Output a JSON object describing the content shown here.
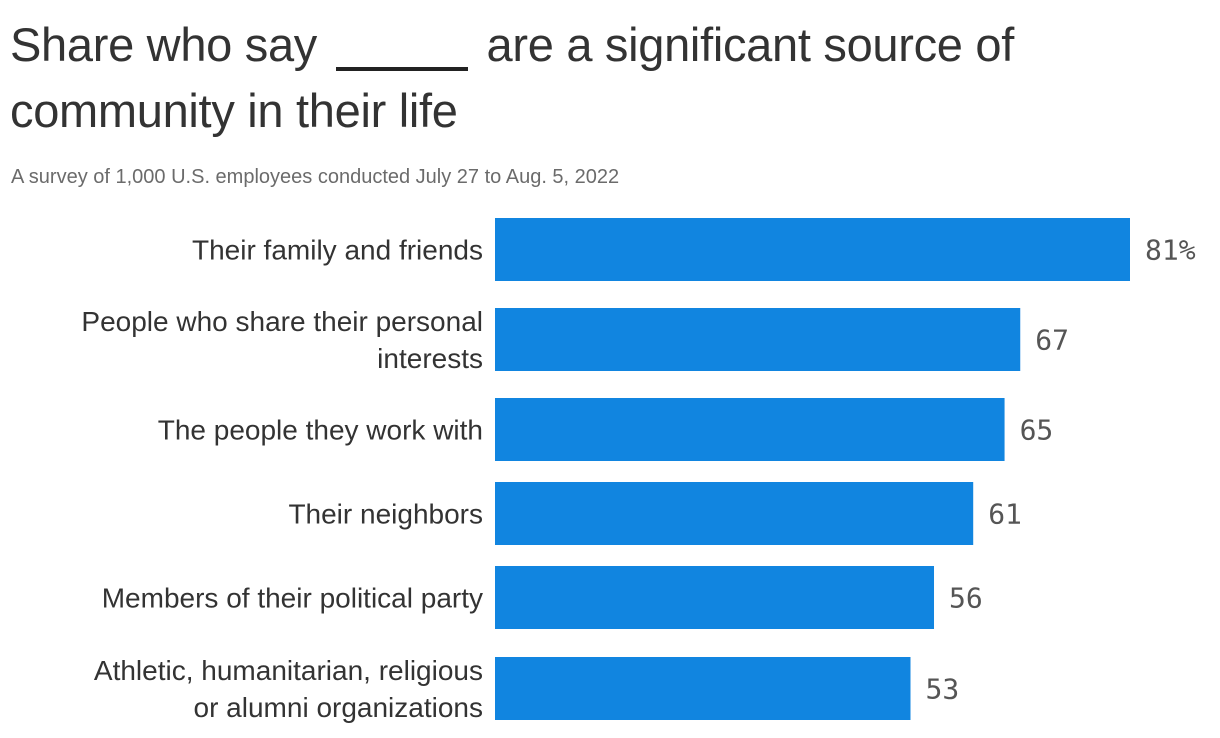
{
  "title": {
    "before": "Share who say",
    "after": "are a significant source of community in their life"
  },
  "subtitle": "A survey of 1,000 U.S. employees conducted July 27 to Aug. 5, 2022",
  "chart_data": {
    "type": "bar",
    "orientation": "horizontal",
    "title": "Share who say _____ are a significant source of community in their life",
    "subtitle": "A survey of 1,000 U.S. employees conducted July 27 to Aug. 5, 2022",
    "categories": [
      "Their family and friends",
      "People who share their personal interests",
      "The people they work with",
      "Their neighbors",
      "Members of their political party",
      "Athletic, humanitarian, religious or alumni organizations"
    ],
    "category_lines": [
      [
        "Their family and friends"
      ],
      [
        "People who share their personal",
        "interests"
      ],
      [
        "The people they work with"
      ],
      [
        "Their neighbors"
      ],
      [
        "Members of their political party"
      ],
      [
        "Athletic, humanitarian, religious",
        "or alumni organizations"
      ]
    ],
    "values": [
      81,
      67,
      65,
      61,
      56,
      53
    ],
    "value_labels": [
      "81%",
      "67",
      "65",
      "61",
      "56",
      "53"
    ],
    "unit": "%",
    "xlim": [
      0,
      81
    ],
    "grid": false,
    "bar_color": "#1185e0"
  }
}
